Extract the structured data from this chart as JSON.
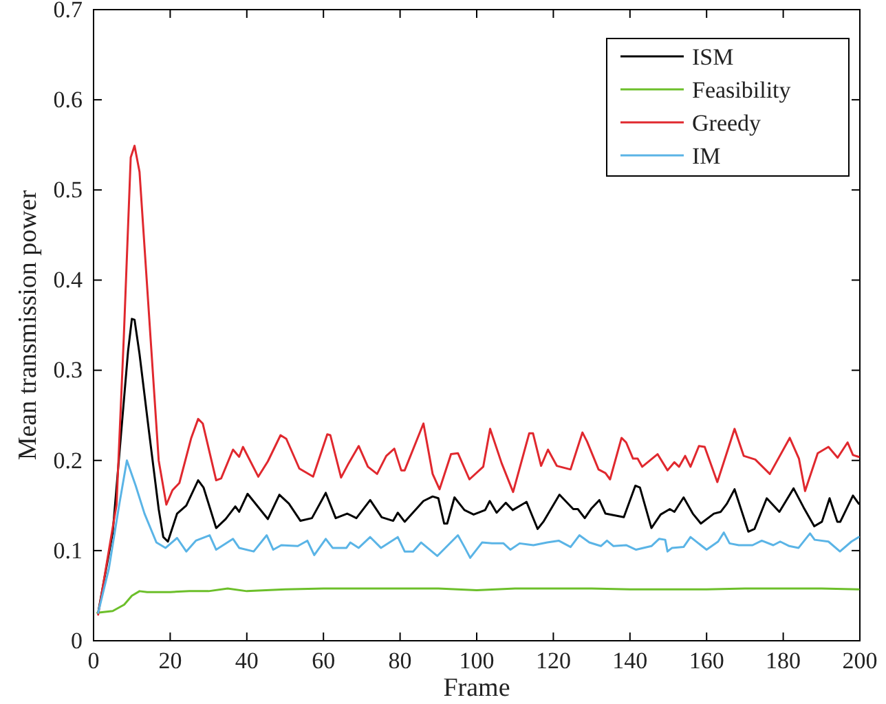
{
  "chart_data": {
    "type": "line",
    "xlabel": "Frame",
    "ylabel": "Mean transmission power",
    "xlim": [
      0,
      200
    ],
    "ylim": [
      0,
      0.7
    ],
    "xticks": [
      0,
      20,
      40,
      60,
      80,
      100,
      120,
      140,
      160,
      180,
      200
    ],
    "yticks": [
      0,
      0.1,
      0.2,
      0.3,
      0.4,
      0.5,
      0.6,
      0.7
    ],
    "grid": false,
    "legend": "top right",
    "marker": "none",
    "line_style": "solid",
    "series": [
      {
        "name": "ISM",
        "color": "#000000",
        "x": [
          1.2,
          5,
          9,
          10,
          10.7,
          12,
          14.5,
          17,
          18.2,
          19.4,
          21.8,
          24.2,
          27.3,
          28.7,
          32,
          34.5,
          37,
          38,
          40.2,
          45.5,
          48.5,
          51,
          54,
          57,
          60.6,
          63.2,
          66.2,
          68.6,
          72.2,
          75.2,
          78.2,
          79.4,
          81.2,
          86.1,
          88.5,
          90,
          91.5,
          92.3,
          94.2,
          96.8,
          99.2,
          102.2,
          103.4,
          105.2,
          107.6,
          109.4,
          113,
          115.9,
          117.4,
          121.6,
          125.2,
          126.4,
          128.2,
          130,
          132,
          133.6,
          138.4,
          141.4,
          142.6,
          145.6,
          148,
          150.4,
          151.6,
          154,
          156.4,
          158.5,
          161.9,
          163.7,
          165.3,
          167.3,
          170.9,
          172.5,
          175.7,
          179,
          182.7,
          185.3,
          188.1,
          190.1,
          192.1,
          194.1,
          194.9,
          198.2,
          199.7
        ],
        "values": [
          0.031,
          0.12,
          0.321,
          0.357,
          0.356,
          0.318,
          0.231,
          0.146,
          0.115,
          0.11,
          0.141,
          0.15,
          0.178,
          0.17,
          0.125,
          0.135,
          0.149,
          0.143,
          0.163,
          0.135,
          0.162,
          0.152,
          0.133,
          0.136,
          0.164,
          0.136,
          0.141,
          0.136,
          0.156,
          0.137,
          0.133,
          0.142,
          0.132,
          0.155,
          0.16,
          0.158,
          0.13,
          0.13,
          0.159,
          0.145,
          0.14,
          0.145,
          0.155,
          0.142,
          0.153,
          0.145,
          0.154,
          0.124,
          0.132,
          0.162,
          0.146,
          0.146,
          0.136,
          0.147,
          0.156,
          0.141,
          0.137,
          0.172,
          0.17,
          0.125,
          0.14,
          0.146,
          0.143,
          0.159,
          0.141,
          0.13,
          0.141,
          0.143,
          0.152,
          0.168,
          0.121,
          0.124,
          0.158,
          0.143,
          0.169,
          0.148,
          0.127,
          0.132,
          0.158,
          0.132,
          0.132,
          0.161,
          0.152
        ]
      },
      {
        "name": "Feasibility",
        "color": "#6cbf2a",
        "x": [
          1,
          5,
          8,
          10,
          12,
          14,
          20,
          25,
          30,
          35,
          40,
          50,
          60,
          70,
          80,
          90,
          100,
          110,
          120,
          130,
          140,
          150,
          160,
          170,
          180,
          190,
          199.7
        ],
        "values": [
          0.031,
          0.033,
          0.04,
          0.05,
          0.055,
          0.054,
          0.054,
          0.055,
          0.055,
          0.058,
          0.055,
          0.057,
          0.058,
          0.058,
          0.058,
          0.058,
          0.056,
          0.058,
          0.058,
          0.058,
          0.057,
          0.057,
          0.057,
          0.058,
          0.058,
          0.058,
          0.057
        ]
      },
      {
        "name": "Greedy",
        "color": "#e0282e",
        "x": [
          1.2,
          6,
          7.9,
          9.7,
          10.7,
          12,
          17,
          19,
          20.6,
          22.4,
          25.5,
          27.3,
          28.5,
          32,
          33.3,
          36.4,
          38,
          39,
          43,
          45.5,
          48.8,
          50.3,
          53.7,
          57.3,
          61,
          61.8,
          64.6,
          66.6,
          69.2,
          71.6,
          74,
          76.4,
          78.5,
          80.3,
          81.2,
          86.1,
          88.5,
          90.3,
          93.3,
          95.1,
          98.1,
          101.7,
          103.5,
          106.5,
          109.5,
          113.7,
          114.7,
          116.8,
          118.6,
          120.9,
          124.5,
          127.6,
          128.8,
          131.8,
          133.6,
          134.8,
          137.8,
          139,
          140.8,
          142,
          143.2,
          147.2,
          149.8,
          151.6,
          152.8,
          154.4,
          155.8,
          158,
          159.5,
          162.8,
          167.3,
          169.7,
          172.7,
          176.5,
          181.7,
          184.1,
          185.7,
          189,
          191.8,
          194.2,
          196.8,
          198.2,
          199.7
        ],
        "values": [
          0.029,
          0.151,
          0.337,
          0.536,
          0.549,
          0.52,
          0.2,
          0.151,
          0.167,
          0.175,
          0.225,
          0.246,
          0.241,
          0.178,
          0.18,
          0.212,
          0.204,
          0.215,
          0.182,
          0.199,
          0.228,
          0.224,
          0.191,
          0.182,
          0.229,
          0.228,
          0.181,
          0.197,
          0.216,
          0.193,
          0.185,
          0.205,
          0.213,
          0.189,
          0.189,
          0.241,
          0.185,
          0.168,
          0.207,
          0.208,
          0.179,
          0.193,
          0.235,
          0.197,
          0.165,
          0.23,
          0.23,
          0.194,
          0.212,
          0.194,
          0.19,
          0.231,
          0.221,
          0.19,
          0.186,
          0.179,
          0.225,
          0.22,
          0.202,
          0.202,
          0.193,
          0.207,
          0.189,
          0.198,
          0.193,
          0.205,
          0.193,
          0.216,
          0.215,
          0.176,
          0.235,
          0.205,
          0.201,
          0.185,
          0.225,
          0.202,
          0.166,
          0.208,
          0.215,
          0.203,
          0.22,
          0.206,
          0.204
        ]
      },
      {
        "name": "IM",
        "color": "#5ab4e6",
        "x": [
          1.2,
          4,
          6.7,
          8.7,
          11,
          13.3,
          16.4,
          18.8,
          21.8,
          24.2,
          26.7,
          30.3,
          32,
          36.4,
          38,
          41.8,
          45.2,
          46.9,
          49,
          53.3,
          55.8,
          57.6,
          60.6,
          62.4,
          66,
          67,
          69.2,
          72.2,
          75,
          79.4,
          81.2,
          83.4,
          85.5,
          89.7,
          95.1,
          96.8,
          98.3,
          101.4,
          104,
          107,
          108.8,
          111.2,
          114.8,
          118.4,
          121.4,
          124.5,
          126.8,
          129.4,
          132.4,
          134,
          135.7,
          139,
          141.6,
          145.6,
          147.6,
          149.2,
          149.8,
          151,
          154,
          155.8,
          160,
          163,
          164.5,
          166,
          168.4,
          172,
          174.4,
          177.4,
          179.2,
          181.6,
          184,
          187,
          188.2,
          191.8,
          194.8,
          197.8,
          199.7
        ],
        "values": [
          0.031,
          0.08,
          0.151,
          0.2,
          0.172,
          0.141,
          0.109,
          0.103,
          0.114,
          0.099,
          0.111,
          0.117,
          0.101,
          0.113,
          0.103,
          0.099,
          0.117,
          0.101,
          0.106,
          0.105,
          0.111,
          0.095,
          0.113,
          0.103,
          0.103,
          0.109,
          0.103,
          0.115,
          0.103,
          0.115,
          0.099,
          0.099,
          0.109,
          0.094,
          0.117,
          0.104,
          0.092,
          0.109,
          0.108,
          0.108,
          0.101,
          0.108,
          0.106,
          0.109,
          0.111,
          0.104,
          0.117,
          0.109,
          0.105,
          0.111,
          0.105,
          0.106,
          0.101,
          0.105,
          0.113,
          0.112,
          0.099,
          0.103,
          0.104,
          0.115,
          0.101,
          0.11,
          0.12,
          0.108,
          0.106,
          0.106,
          0.111,
          0.106,
          0.11,
          0.105,
          0.103,
          0.119,
          0.112,
          0.11,
          0.099,
          0.11,
          0.115
        ]
      }
    ]
  }
}
